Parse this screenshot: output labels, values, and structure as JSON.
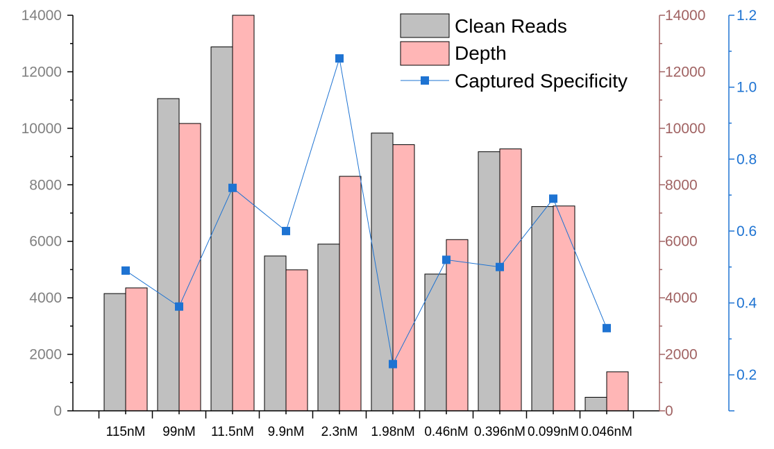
{
  "chart_data": {
    "type": "bar",
    "title": "",
    "xlabel": "",
    "ylabel": "",
    "categories": [
      "115nM",
      "99nM",
      "11.5nM",
      "9.9nM",
      "2.3nM",
      "1.98nM",
      "0.46nM",
      "0.396nM",
      "0.099nM",
      "0.046nM"
    ],
    "series": [
      {
        "name": "Clean Reads",
        "type": "bar",
        "axis": "left",
        "color": "#c0c0c0",
        "values": [
          4150,
          11050,
          12880,
          5480,
          5900,
          9830,
          4840,
          9170,
          7230,
          480
        ]
      },
      {
        "name": "Depth",
        "type": "bar",
        "axis": "right1",
        "color": "#ffb6b6",
        "values": [
          4350,
          10170,
          14000,
          4990,
          8300,
          9420,
          6060,
          9270,
          7250,
          1380
        ]
      },
      {
        "name": "Captured Specificity",
        "type": "line",
        "axis": "right2",
        "color": "#1e73d2",
        "values": [
          0.49,
          0.39,
          0.72,
          0.6,
          1.08,
          0.23,
          0.52,
          0.5,
          0.69,
          0.33
        ]
      }
    ],
    "axes": {
      "left": {
        "ylim": [
          0,
          14000
        ],
        "ticks": [
          "0",
          "2000",
          "4000",
          "6000",
          "8000",
          "10000",
          "12000",
          "14000"
        ],
        "color": "#808080"
      },
      "right1": {
        "ylim": [
          0,
          14000
        ],
        "ticks": [
          "0",
          "2000",
          "4000",
          "6000",
          "8000",
          "10000",
          "12000",
          "14000"
        ],
        "color": "#a06262"
      },
      "right2": {
        "ylim": [
          0.1,
          1.2
        ],
        "ticks": [
          "0.2",
          "0.4",
          "0.6",
          "0.8",
          "1.0",
          "1.2"
        ],
        "color": "#1e73d2"
      }
    },
    "legend": "top-right",
    "grid": false
  }
}
